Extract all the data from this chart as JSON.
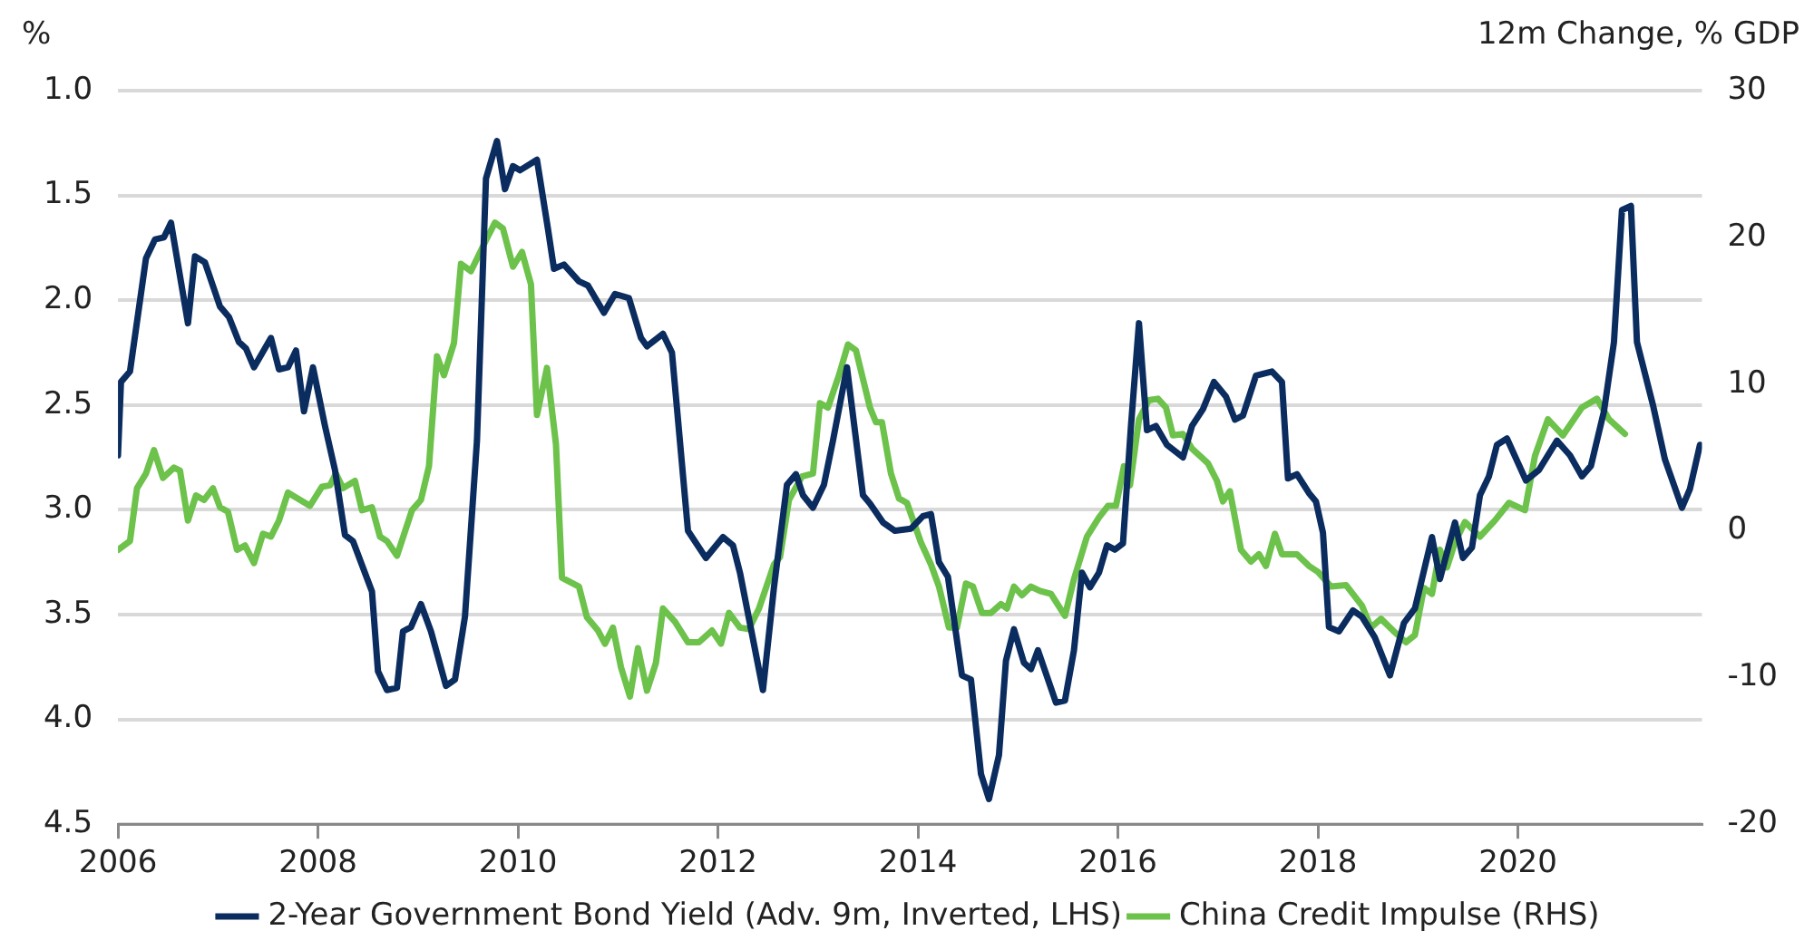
{
  "chart_data": {
    "type": "line",
    "ylabel": "%",
    "y2label": "12m Change, % GDP",
    "xlim": [
      2006,
      2021.84
    ],
    "xticks": [
      2006,
      2008,
      2010,
      2012,
      2014,
      2016,
      2018,
      2020
    ],
    "ylim": [
      4.5,
      1.0
    ],
    "yticks": [
      {
        "value": 1.0,
        "label": "1.0"
      },
      {
        "value": 1.5,
        "label": "1.5"
      },
      {
        "value": 2.0,
        "label": "2.0"
      },
      {
        "value": 2.5,
        "label": "2.5"
      },
      {
        "value": 3.0,
        "label": "3.0"
      },
      {
        "value": 3.5,
        "label": "3.5"
      },
      {
        "value": 4.0,
        "label": "4.0"
      },
      {
        "value": 4.5,
        "label": "4.5"
      }
    ],
    "y2lim": [
      -20,
      30
    ],
    "y2ticks": [
      -20,
      -10,
      0,
      10,
      20,
      30
    ],
    "grid": "y",
    "legend": "bottom",
    "series": [
      {
        "name": "2-Year Government Bond Yield (Adv. 9m, Inverted, LHS)",
        "color": "#0b2c5f",
        "x": [
          2006.0,
          2006.03,
          2006.12,
          2006.28,
          2006.37,
          2006.46,
          2006.53,
          2006.7,
          2006.77,
          2006.87,
          2007.02,
          2007.11,
          2007.21,
          2007.28,
          2007.36,
          2007.53,
          2007.61,
          2007.7,
          2007.78,
          2007.86,
          2007.95,
          2008.07,
          2008.17,
          2008.27,
          2008.35,
          2008.54,
          2008.6,
          2008.69,
          2008.79,
          2008.85,
          2008.93,
          2009.03,
          2009.13,
          2009.28,
          2009.37,
          2009.47,
          2009.59,
          2009.68,
          2009.79,
          2009.87,
          2009.95,
          2010.02,
          2010.19,
          2010.3,
          2010.36,
          2010.46,
          2010.61,
          2010.7,
          2010.86,
          2010.97,
          2011.11,
          2011.23,
          2011.29,
          2011.45,
          2011.54,
          2011.7,
          2011.88,
          2012.05,
          2012.15,
          2012.22,
          2012.45,
          2012.56,
          2012.69,
          2012.78,
          2012.85,
          2012.95,
          2013.06,
          2013.15,
          2013.29,
          2013.45,
          2013.52,
          2013.65,
          2013.77,
          2013.93,
          2014.05,
          2014.13,
          2014.21,
          2014.3,
          2014.44,
          2014.53,
          2014.63,
          2014.71,
          2014.81,
          2014.88,
          2014.96,
          2015.06,
          2015.13,
          2015.2,
          2015.38,
          2015.47,
          2015.56,
          2015.64,
          2015.72,
          2015.81,
          2015.89,
          2015.97,
          2016.05,
          2016.13,
          2016.21,
          2016.29,
          2016.38,
          2016.49,
          2016.65,
          2016.74,
          2016.85,
          2016.96,
          2017.08,
          2017.17,
          2017.25,
          2017.38,
          2017.54,
          2017.64,
          2017.7,
          2017.79,
          2017.91,
          2017.98,
          2018.05,
          2018.11,
          2018.21,
          2018.35,
          2018.44,
          2018.57,
          2018.72,
          2018.86,
          2018.97,
          2019.14,
          2019.22,
          2019.37,
          2019.45,
          2019.54,
          2019.62,
          2019.71,
          2019.79,
          2019.89,
          2020.08,
          2020.21,
          2020.39,
          2020.52,
          2020.64,
          2020.73,
          2020.86,
          2020.96,
          2021.04,
          2021.13,
          2021.19,
          2021.35,
          2021.47,
          2021.64,
          2021.72,
          2021.82
        ],
        "values": [
          2.74,
          2.39,
          2.34,
          1.8,
          1.71,
          1.7,
          1.63,
          2.11,
          1.79,
          1.82,
          2.03,
          2.08,
          2.2,
          2.23,
          2.32,
          2.18,
          2.33,
          2.32,
          2.24,
          2.53,
          2.32,
          2.6,
          2.81,
          3.12,
          3.15,
          3.39,
          3.77,
          3.86,
          3.85,
          3.58,
          3.56,
          3.45,
          3.58,
          3.84,
          3.81,
          3.51,
          2.67,
          1.42,
          1.24,
          1.47,
          1.36,
          1.38,
          1.33,
          1.66,
          1.85,
          1.83,
          1.91,
          1.93,
          2.06,
          1.97,
          1.99,
          2.18,
          2.22,
          2.16,
          2.25,
          3.1,
          3.23,
          3.13,
          3.17,
          3.3,
          3.86,
          3.37,
          2.88,
          2.83,
          2.93,
          2.99,
          2.88,
          2.67,
          2.32,
          2.93,
          2.97,
          3.06,
          3.1,
          3.09,
          3.03,
          3.02,
          3.25,
          3.32,
          3.79,
          3.81,
          4.26,
          4.38,
          4.17,
          3.72,
          3.57,
          3.73,
          3.76,
          3.67,
          3.92,
          3.91,
          3.67,
          3.3,
          3.37,
          3.3,
          3.17,
          3.19,
          3.16,
          2.6,
          2.11,
          2.62,
          2.6,
          2.69,
          2.75,
          2.6,
          2.52,
          2.39,
          2.46,
          2.57,
          2.55,
          2.36,
          2.34,
          2.39,
          2.85,
          2.83,
          2.92,
          2.96,
          3.11,
          3.56,
          3.58,
          3.48,
          3.51,
          3.61,
          3.79,
          3.54,
          3.47,
          3.13,
          3.33,
          3.06,
          3.23,
          3.18,
          2.93,
          2.84,
          2.69,
          2.66,
          2.86,
          2.81,
          2.67,
          2.74,
          2.84,
          2.79,
          2.53,
          2.2,
          1.57,
          1.55,
          2.2,
          2.5,
          2.76,
          2.99,
          2.9,
          2.69
        ]
      },
      {
        "name": "China Credit Impulse (RHS)",
        "color": "#6cc24a",
        "axis": "y2",
        "x": [
          2006.0,
          2006.12,
          2006.19,
          2006.28,
          2006.36,
          2006.45,
          2006.56,
          2006.62,
          2006.7,
          2006.78,
          2006.86,
          2006.95,
          2007.02,
          2007.1,
          2007.19,
          2007.27,
          2007.36,
          2007.45,
          2007.53,
          2007.61,
          2007.7,
          2007.92,
          2008.04,
          2008.12,
          2008.18,
          2008.25,
          2008.37,
          2008.44,
          2008.54,
          2008.62,
          2008.69,
          2008.79,
          2008.94,
          2009.03,
          2009.11,
          2009.19,
          2009.26,
          2009.36,
          2009.43,
          2009.53,
          2009.68,
          2009.77,
          2009.85,
          2009.95,
          2010.04,
          2010.13,
          2010.19,
          2010.29,
          2010.38,
          2010.44,
          2010.61,
          2010.69,
          2010.8,
          2010.87,
          2010.95,
          2011.03,
          2011.12,
          2011.2,
          2011.29,
          2011.38,
          2011.45,
          2011.57,
          2011.7,
          2011.81,
          2011.94,
          2012.03,
          2012.11,
          2012.22,
          2012.31,
          2012.41,
          2012.56,
          2012.62,
          2012.71,
          2012.84,
          2012.95,
          2013.02,
          2013.1,
          2013.21,
          2013.3,
          2013.38,
          2013.52,
          2013.58,
          2013.64,
          2013.73,
          2013.81,
          2013.89,
          2014.03,
          2014.13,
          2014.21,
          2014.31,
          2014.39,
          2014.48,
          2014.55,
          2014.64,
          2014.73,
          2014.83,
          2014.89,
          2014.96,
          2015.04,
          2015.13,
          2015.22,
          2015.33,
          2015.47,
          2015.56,
          2015.69,
          2015.81,
          2015.9,
          2015.98,
          2016.06,
          2016.12,
          2016.21,
          2016.31,
          2016.4,
          2016.48,
          2016.55,
          2016.65,
          2016.74,
          2016.9,
          2016.99,
          2017.05,
          2017.12,
          2017.23,
          2017.33,
          2017.41,
          2017.48,
          2017.57,
          2017.64,
          2017.79,
          2017.91,
          2018.0,
          2018.13,
          2018.28,
          2018.44,
          2018.53,
          2018.63,
          2018.75,
          2018.88,
          2018.97,
          2019.06,
          2019.14,
          2019.22,
          2019.29,
          2019.37,
          2019.47,
          2019.62,
          2019.77,
          2019.91,
          2020.07,
          2020.17,
          2020.3,
          2020.45,
          2020.64,
          2020.79,
          2020.91,
          2021.07
        ],
        "values": [
          -1.3,
          -0.7,
          2.9,
          3.9,
          5.5,
          3.6,
          4.3,
          4.1,
          0.7,
          2.4,
          2.1,
          2.9,
          1.6,
          1.3,
          -1.3,
          -1.0,
          -2.2,
          -0.2,
          -0.4,
          0.7,
          2.6,
          1.7,
          3.0,
          3.1,
          3.9,
          2.9,
          3.4,
          1.4,
          1.6,
          -0.4,
          -0.7,
          -1.7,
          1.4,
          2.1,
          4.4,
          11.9,
          10.6,
          12.8,
          18.2,
          17.7,
          19.8,
          21.0,
          20.6,
          18.0,
          19.0,
          16.8,
          7.9,
          11.1,
          5.9,
          -3.2,
          -3.8,
          -5.9,
          -6.8,
          -7.7,
          -6.6,
          -9.3,
          -11.3,
          -8.0,
          -10.9,
          -9.0,
          -5.3,
          -6.2,
          -7.6,
          -7.6,
          -6.8,
          -7.7,
          -5.6,
          -6.6,
          -6.7,
          -5.3,
          -2.3,
          -1.8,
          2.1,
          3.7,
          3.9,
          8.7,
          8.4,
          10.6,
          12.7,
          12.3,
          8.4,
          7.4,
          7.4,
          3.9,
          2.2,
          1.9,
          -0.8,
          -2.3,
          -3.8,
          -6.6,
          -6.6,
          -3.6,
          -3.8,
          -5.6,
          -5.6,
          -5.0,
          -5.3,
          -3.8,
          -4.4,
          -3.8,
          -4.1,
          -4.3,
          -5.8,
          -3.3,
          -0.4,
          0.9,
          1.7,
          1.7,
          4.4,
          3.1,
          7.6,
          8.9,
          9.0,
          8.4,
          6.5,
          6.6,
          5.6,
          4.6,
          3.4,
          2.0,
          2.7,
          -1.3,
          -2.1,
          -1.6,
          -2.4,
          -0.2,
          -1.6,
          -1.6,
          -2.4,
          -2.8,
          -3.8,
          -3.7,
          -5.1,
          -6.6,
          -6.0,
          -6.8,
          -7.6,
          -7.1,
          -3.9,
          -4.3,
          -1.3,
          -2.5,
          -0.8,
          0.6,
          -0.4,
          0.7,
          1.9,
          1.4,
          5.1,
          7.6,
          6.5,
          8.4,
          9.0,
          7.6,
          6.6
        ]
      }
    ]
  }
}
